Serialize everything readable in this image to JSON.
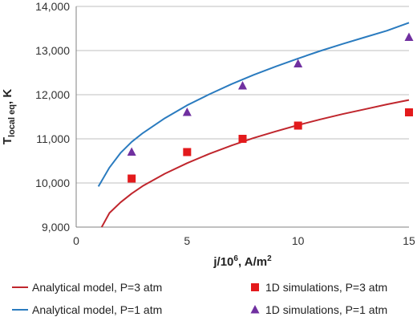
{
  "chart_data": {
    "type": "line",
    "title": "",
    "xlabel": {
      "main": "j/10",
      "sup": "6",
      "rest": ", A/m",
      "sup2": "2"
    },
    "ylabel": {
      "main": "T",
      "sub": "local eq",
      "rest": ", K"
    },
    "xlim": [
      0,
      15
    ],
    "ylim": [
      9000,
      14000
    ],
    "x_ticks": [
      0,
      5,
      10,
      15
    ],
    "x_tick_labels": [
      "0",
      "5",
      "10",
      "15"
    ],
    "y_ticks": [
      9000,
      10000,
      11000,
      12000,
      13000,
      14000
    ],
    "y_tick_labels": [
      "9,000",
      "10,000",
      "11,000",
      "12,000",
      "13,000",
      "14,000"
    ],
    "grid": "horizontal",
    "legend_position": "bottom",
    "series": [
      {
        "name": "Analytical model, P=3 atm",
        "kind": "line",
        "color": "#c0262d",
        "x": [
          1.15,
          1.5,
          2,
          2.5,
          3,
          4,
          5,
          6,
          7,
          8,
          9,
          10,
          11,
          12,
          13,
          14,
          15
        ],
        "y": [
          9000,
          9320,
          9560,
          9760,
          9930,
          10210,
          10450,
          10660,
          10850,
          11020,
          11170,
          11310,
          11440,
          11560,
          11670,
          11780,
          11880
        ]
      },
      {
        "name": "Analytical model, P=1 atm",
        "kind": "line",
        "color": "#2a7bbf",
        "x": [
          1,
          1.5,
          2,
          2.5,
          3,
          4,
          5,
          6,
          7,
          8,
          9,
          10,
          11,
          12,
          13,
          14,
          15
        ],
        "y": [
          9920,
          10350,
          10680,
          10930,
          11130,
          11470,
          11760,
          12010,
          12240,
          12450,
          12640,
          12820,
          12990,
          13150,
          13300,
          13450,
          13630
        ]
      },
      {
        "name": "1D simulations, P=3 atm",
        "kind": "marker",
        "marker": "square",
        "color": "#e31a1c",
        "x": [
          2.5,
          5,
          7.5,
          10,
          15
        ],
        "y": [
          10100,
          10700,
          11000,
          11300,
          11600
        ]
      },
      {
        "name": "1D simulations, P=1 atm",
        "kind": "marker",
        "marker": "triangle",
        "color": "#7030a0",
        "x": [
          2.5,
          5,
          7.5,
          10,
          15
        ],
        "y": [
          10700,
          11600,
          12200,
          12700,
          13300
        ]
      }
    ]
  },
  "colors": {
    "grid": "#bfbfbf",
    "axis": "#808080"
  }
}
